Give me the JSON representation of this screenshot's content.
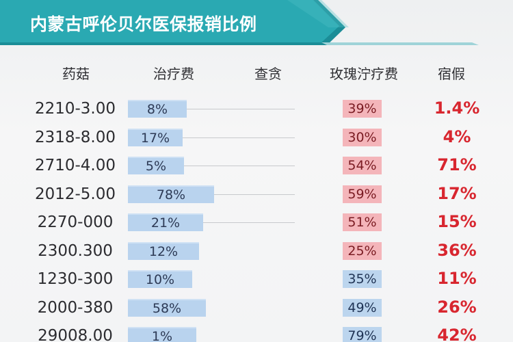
{
  "title": "内蒙古呼伦贝尔医保报销比例",
  "headers": [
    "药菇",
    "治疗费",
    "查贪",
    "玫瑰泞疗费",
    "宿假"
  ],
  "colors": {
    "banner": "#2aa9b2",
    "banner_dark": "#1b8d97",
    "bar_blue": "#b9d3ee",
    "box_red": "#f4b5ba",
    "box_blue": "#bcd5ee",
    "pct_red": "#d8262f"
  },
  "rows": [
    {
      "label": "2210-3.00",
      "bar": "8%",
      "bar_frac": 0.43,
      "line": true,
      "box": "39%",
      "box_color": "red",
      "pct": "1.4%"
    },
    {
      "label": "2318-8.00",
      "bar": "17%",
      "bar_frac": 0.4,
      "line": true,
      "box": "30%",
      "box_color": "red",
      "pct": "4%"
    },
    {
      "label": "2710-4.00",
      "bar": "5%",
      "bar_frac": 0.41,
      "line": true,
      "box": "54%",
      "box_color": "red",
      "pct": "71%"
    },
    {
      "label": "2012-5.00",
      "bar": "78%",
      "bar_frac": 0.63,
      "line": true,
      "box": "59%",
      "box_color": "red",
      "pct": "17%"
    },
    {
      "label": "2270-000",
      "bar": "21%",
      "bar_frac": 0.55,
      "line": true,
      "box": "51%",
      "box_color": "red",
      "pct": "15%"
    },
    {
      "label": "2300.300",
      "bar": "12%",
      "bar_frac": 0.52,
      "line": false,
      "box": "25%",
      "box_color": "red",
      "pct": "36%"
    },
    {
      "label": "1230-300",
      "bar": "10%",
      "bar_frac": 0.47,
      "line": false,
      "box": "35%",
      "box_color": "blue",
      "pct": "11%"
    },
    {
      "label": "2000-380",
      "bar": "58%",
      "bar_frac": 0.57,
      "line": false,
      "box": "49%",
      "box_color": "blue",
      "pct": "26%"
    },
    {
      "label": "29008.00",
      "bar": "1%",
      "bar_frac": 0.5,
      "line": false,
      "box": "79%",
      "box_color": "blue",
      "pct": "42%"
    }
  ]
}
